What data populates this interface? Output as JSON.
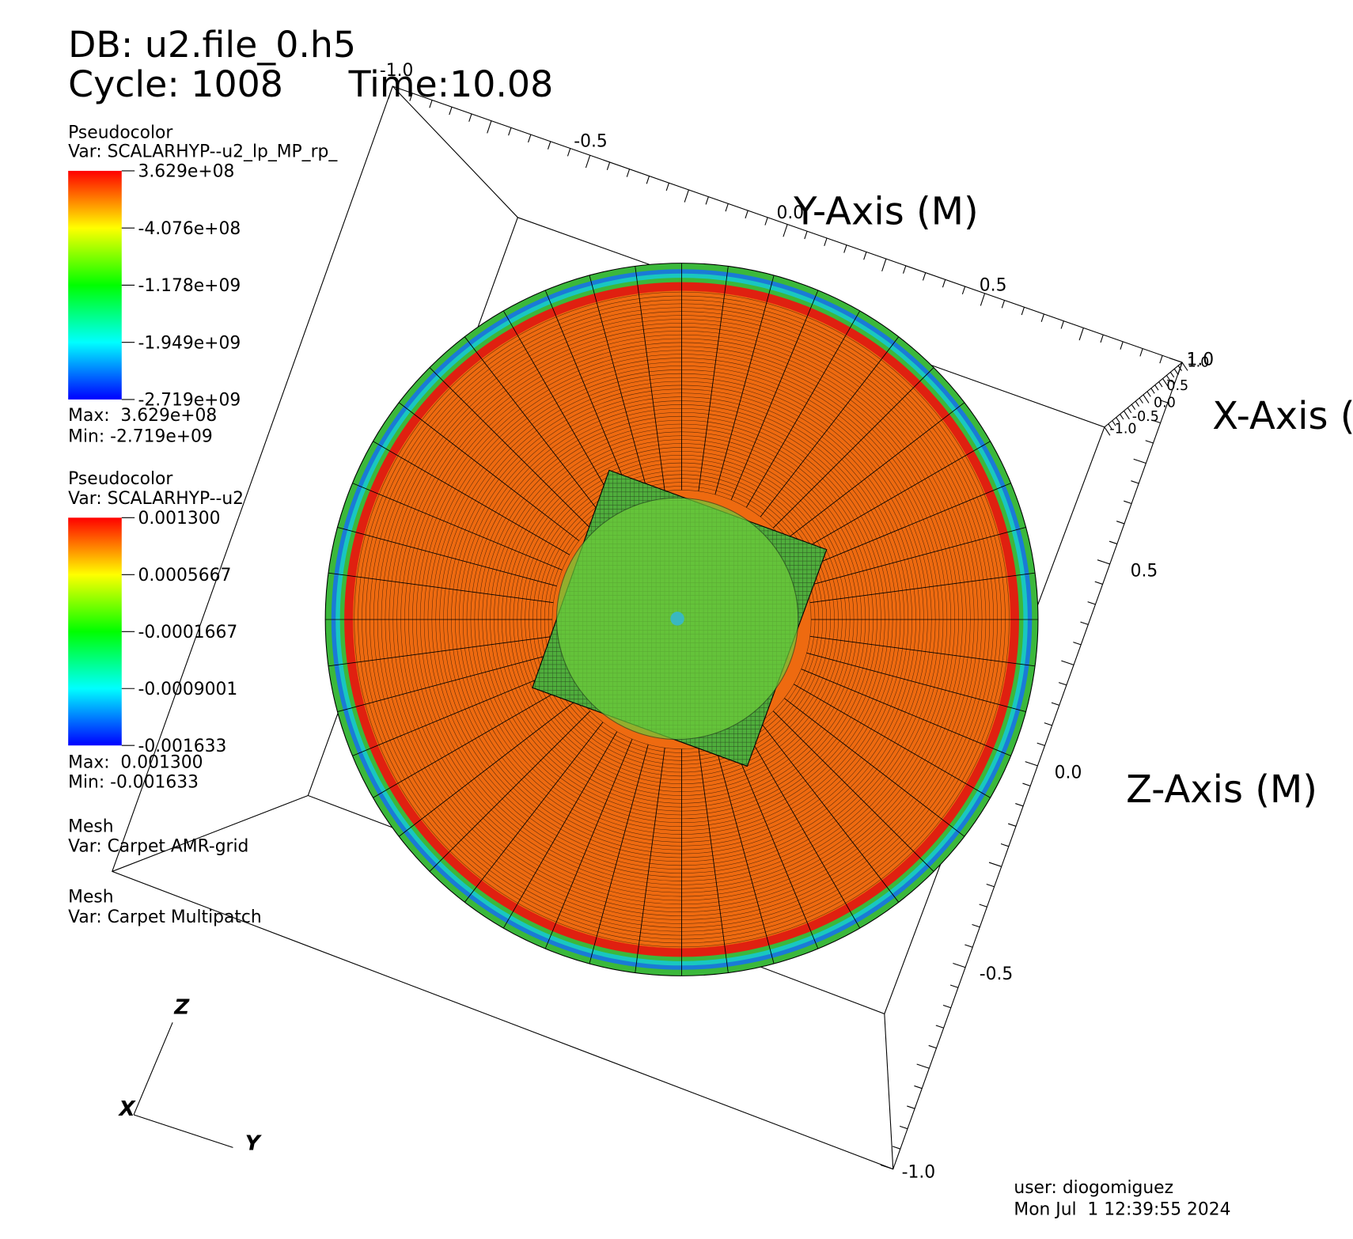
{
  "header": {
    "db": "DB: u2.file_0.h5",
    "cycle": "Cycle: 1008",
    "time": "Time:10.08"
  },
  "legends": [
    {
      "plot": "Pseudocolor",
      "var": "Var: SCALARHYP--u2_lp_MP_rp_",
      "ticks": [
        "3.629e+08",
        "-4.076e+08",
        "-1.178e+09",
        "-1.949e+09",
        "-2.719e+09"
      ],
      "max": "Max:  3.629e+08",
      "min": "Min: -2.719e+09"
    },
    {
      "plot": "Pseudocolor",
      "var": "Var: SCALARHYP--u2",
      "ticks": [
        "0.001300",
        "0.0005667",
        "-0.0001667",
        "-0.0009001",
        "-0.001633"
      ],
      "max": "Max:  0.001300",
      "min": "Min: -0.001633"
    }
  ],
  "meshes": [
    {
      "plot": "Mesh",
      "var": "Var: Carpet AMR-grid"
    },
    {
      "plot": "Mesh",
      "var": "Var: Carpet Multipatch"
    }
  ],
  "axes": {
    "y": {
      "title": "Y-Axis (M)",
      "ticks": [
        "-1.0",
        "-0.5",
        "0.0",
        "0.5",
        "1.0"
      ]
    },
    "x": {
      "title": "X-Axis (",
      "ticks": [
        "1.0",
        "0.5",
        "0.0",
        "-0.5",
        "-1.0"
      ]
    },
    "z": {
      "title": "Z-Axis (M)",
      "ticks": [
        "0.5",
        "0.0",
        "-0.5",
        "-1.0"
      ]
    }
  },
  "triad": {
    "z": "Z",
    "x": "X",
    "y": "Y"
  },
  "footer": {
    "user": "user: diogomiguez",
    "date": "Mon Jul  1 12:39:55 2024"
  }
}
